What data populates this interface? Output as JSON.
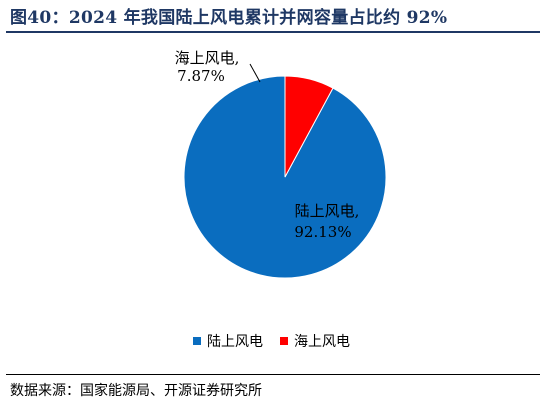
{
  "figure": {
    "title": "图40：2024 年我国陆上风电累计并网容量占比约 92%",
    "source": "数据来源：国家能源局、开源证券研究所"
  },
  "colors": {
    "title": "#1f3864",
    "onshore": "#0a6dbf",
    "offshore": "#ff0000"
  },
  "chart_data": {
    "type": "pie",
    "title": "图40：2024 年我国陆上风电累计并网容量占比约 92%",
    "unit": "%",
    "slices": [
      {
        "name": "陆上风电",
        "value": 92.13,
        "label_name": "陆上风电,",
        "label_value": "92.13%",
        "color": "#0a6dbf"
      },
      {
        "name": "海上风电",
        "value": 7.87,
        "label_name": "海上风电,",
        "label_value": "7.87%",
        "color": "#ff0000"
      }
    ],
    "start_angle": "12 o'clock",
    "direction": "counterclockwise",
    "legend_position": "bottom",
    "legend": [
      "陆上风电",
      "海上风电"
    ]
  }
}
